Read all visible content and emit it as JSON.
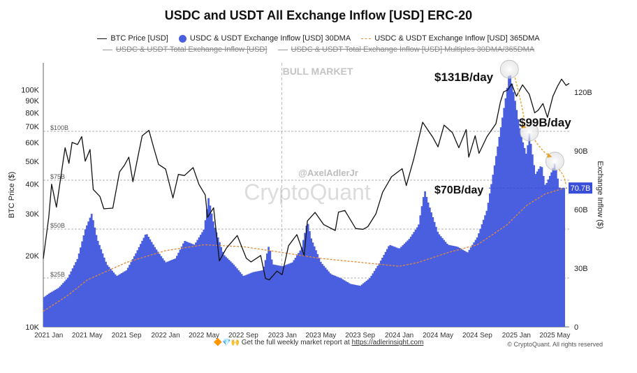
{
  "chart_data": {
    "type": "bar+line",
    "title": "USDC and USDT All Exchange Inflow [USD] ERC-20",
    "legend": {
      "row1": [
        "BTC Price [USD]",
        "USDC & USDT Exchange Inflow [USD] 30DMA",
        "USDC & USDT Exchange Inflow [USD] 365DMA"
      ],
      "row2": [
        "USDC & USDT Total Exchange Inflow [USD]",
        "USDC & USDT Total Exchange Inflow [USD] Multiples 30DMA/365DMA"
      ]
    },
    "x_ticks": [
      "2021 Jan",
      "2021 May",
      "2021 Sep",
      "2022 Jan",
      "2022 May",
      "2022 Sep",
      "2023 Jan",
      "2023 May",
      "2023 Sep",
      "2024 Jan",
      "2024 May",
      "2024 Sep",
      "2025 Jan",
      "2025 May"
    ],
    "x_range": [
      "2020-12-15",
      "2025-06-15"
    ],
    "y_left": {
      "label": "BTC Price ($)",
      "scale": "log",
      "range": [
        10000,
        130000
      ],
      "ticks": [
        "10K",
        "20K",
        "30K",
        "40K",
        "50K",
        "60K",
        "70K",
        "80K",
        "90K",
        "100K"
      ]
    },
    "y_right": {
      "label": "Exchange Inflow ($)",
      "range": [
        0,
        135
      ],
      "ticks": [
        "0",
        "30B",
        "60B",
        "90B",
        "120B"
      ]
    },
    "reference_lines": [
      "$25B",
      "$50B",
      "$75B",
      "$100B"
    ],
    "current_value_badge": "70.7B",
    "annotations": [
      "$131B/day",
      "$99B/day",
      "$70B/day"
    ],
    "watermarks": [
      "BULL MARKET",
      "@AxelAdlerJr",
      "CryptoQuant"
    ],
    "vertical_marker_date": "2022-12-30",
    "inflow_30dma_billions": {
      "x": [
        "2020-12-15",
        "2021-01-01",
        "2021-02-01",
        "2021-03-01",
        "2021-04-01",
        "2021-04-25",
        "2021-05-15",
        "2021-06-01",
        "2021-07-01",
        "2021-08-01",
        "2021-09-01",
        "2021-10-01",
        "2021-11-01",
        "2021-12-01",
        "2022-01-01",
        "2022-02-01",
        "2022-03-01",
        "2022-04-01",
        "2022-05-01",
        "2022-05-15",
        "2022-06-01",
        "2022-07-01",
        "2022-08-01",
        "2022-09-01",
        "2022-10-01",
        "2022-11-01",
        "2022-11-20",
        "2022-12-01",
        "2023-01-01",
        "2023-02-01",
        "2023-03-01",
        "2023-03-20",
        "2023-04-01",
        "2023-05-01",
        "2023-06-01",
        "2023-07-01",
        "2023-08-01",
        "2023-09-01",
        "2023-10-01",
        "2023-11-01",
        "2023-12-01",
        "2024-01-01",
        "2024-02-01",
        "2024-03-01",
        "2024-03-20",
        "2024-04-01",
        "2024-05-01",
        "2024-06-01",
        "2024-07-01",
        "2024-08-01",
        "2024-09-01",
        "2024-10-01",
        "2024-11-01",
        "2024-12-01",
        "2024-12-10",
        "2024-12-25",
        "2025-01-15",
        "2025-02-01",
        "2025-02-10",
        "2025-03-01",
        "2025-03-20",
        "2025-04-01",
        "2025-04-20",
        "2025-05-01",
        "2025-05-15",
        "2025-06-01"
      ],
      "y": [
        15,
        17,
        20,
        25,
        35,
        50,
        58,
        45,
        32,
        26,
        29,
        38,
        48,
        40,
        33,
        35,
        44,
        42,
        50,
        66,
        52,
        37,
        32,
        26,
        28,
        29,
        42,
        32,
        31,
        33,
        40,
        54,
        45,
        33,
        27,
        25,
        22,
        21,
        25,
        33,
        42,
        40,
        45,
        52,
        70,
        63,
        48,
        42,
        41,
        38,
        46,
        60,
        90,
        120,
        131,
        118,
        98,
        88,
        99,
        78,
        83,
        72,
        79,
        84,
        71,
        71
      ]
    },
    "inflow_365dma_billions": {
      "x": [
        "2020-12-15",
        "2021-03-01",
        "2021-05-01",
        "2021-09-01",
        "2022-01-01",
        "2022-05-01",
        "2022-09-01",
        "2023-01-01",
        "2023-05-01",
        "2023-09-01",
        "2024-01-01",
        "2024-03-01",
        "2024-06-01",
        "2024-09-01",
        "2024-12-01",
        "2025-02-01",
        "2025-04-01",
        "2025-06-01"
      ],
      "y": [
        8,
        16,
        24,
        33,
        39,
        42,
        41,
        38,
        35,
        33,
        31,
        33,
        38,
        42,
        52,
        62,
        68,
        71
      ]
    },
    "btc_price_usd": {
      "x": [
        "2020-12-15",
        "2021-01-01",
        "2021-01-10",
        "2021-01-25",
        "2021-02-10",
        "2021-02-21",
        "2021-03-05",
        "2021-03-15",
        "2021-04-01",
        "2021-04-14",
        "2021-04-25",
        "2021-05-10",
        "2021-05-20",
        "2021-06-10",
        "2021-06-22",
        "2021-07-20",
        "2021-08-10",
        "2021-08-25",
        "2021-09-08",
        "2021-09-21",
        "2021-10-10",
        "2021-10-20",
        "2021-11-10",
        "2021-11-25",
        "2021-12-10",
        "2022-01-01",
        "2022-01-24",
        "2022-02-10",
        "2022-03-01",
        "2022-03-28",
        "2022-04-15",
        "2022-05-05",
        "2022-05-12",
        "2022-05-31",
        "2022-06-18",
        "2022-07-10",
        "2022-08-13",
        "2022-09-10",
        "2022-09-25",
        "2022-10-25",
        "2022-11-09",
        "2022-11-21",
        "2022-12-15",
        "2022-12-31",
        "2023-01-20",
        "2023-02-15",
        "2023-03-10",
        "2023-03-20",
        "2023-04-13",
        "2023-05-10",
        "2023-06-15",
        "2023-06-25",
        "2023-07-15",
        "2023-08-18",
        "2023-09-10",
        "2023-09-25",
        "2023-10-20",
        "2023-11-10",
        "2023-12-08",
        "2024-01-10",
        "2024-01-23",
        "2024-02-15",
        "2024-03-05",
        "2024-03-14",
        "2024-04-15",
        "2024-05-01",
        "2024-05-20",
        "2024-06-15",
        "2024-07-05",
        "2024-07-28",
        "2024-08-05",
        "2024-08-25",
        "2024-09-06",
        "2024-10-01",
        "2024-10-29",
        "2024-11-12",
        "2024-11-22",
        "2024-12-05",
        "2024-12-17",
        "2025-01-01",
        "2025-01-20",
        "2025-02-10",
        "2025-02-27",
        "2025-03-10",
        "2025-03-25",
        "2025-04-08",
        "2025-04-25",
        "2025-05-10",
        "2025-05-22",
        "2025-06-05",
        "2025-06-15"
      ],
      "y": [
        19400,
        29000,
        40000,
        32000,
        45000,
        57000,
        49000,
        60000,
        58800,
        63500,
        50000,
        56000,
        38000,
        35500,
        31500,
        31700,
        45000,
        48000,
        52000,
        41000,
        55000,
        64000,
        67500,
        57000,
        48500,
        46300,
        35000,
        44000,
        43500,
        47000,
        40000,
        36000,
        29000,
        31800,
        19000,
        21500,
        24300,
        19500,
        18800,
        20000,
        16000,
        15800,
        17200,
        16600,
        22000,
        24500,
        20000,
        28000,
        30400,
        27000,
        25500,
        30500,
        31000,
        26000,
        25800,
        26500,
        30000,
        37000,
        43000,
        46500,
        39500,
        51000,
        65000,
        73000,
        63000,
        57500,
        71000,
        66000,
        57000,
        68000,
        52000,
        64000,
        54000,
        63500,
        72000,
        89000,
        98000,
        100000,
        106000,
        94000,
        105000,
        96000,
        80000,
        82000,
        87500,
        76500,
        94000,
        104000,
        111000,
        104500,
        106500
      ]
    }
  },
  "footer": {
    "emoji_badge": "🔶💎🙌",
    "text": "Get the full weekly market report at",
    "link": "https://adlerinsight.com",
    "copyright": "© CryptoQuant. All rights reserved"
  },
  "colors": {
    "bars": "#4a5fe0",
    "btc": "#111111",
    "dma365": "#e0893a",
    "badge": "#3a4fd8"
  }
}
